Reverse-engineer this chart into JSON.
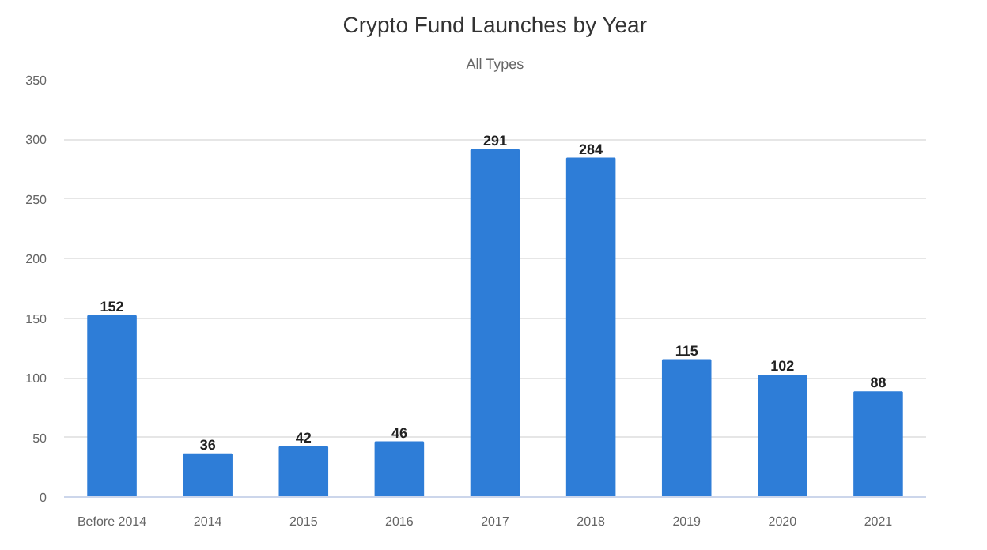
{
  "chart_data": {
    "type": "bar",
    "title": "Crypto Fund Launches by Year",
    "subtitle": "All Types",
    "categories": [
      "Before 2014",
      "2014",
      "2015",
      "2016",
      "2017",
      "2018",
      "2019",
      "2020",
      "2021"
    ],
    "values": [
      152,
      36,
      42,
      46,
      291,
      284,
      115,
      102,
      88
    ],
    "color": "#2e7dd7",
    "ylim": [
      0,
      350
    ],
    "yticks": [
      0,
      50,
      100,
      150,
      200,
      250,
      300,
      350
    ],
    "grid": "y",
    "data_labels": true
  }
}
